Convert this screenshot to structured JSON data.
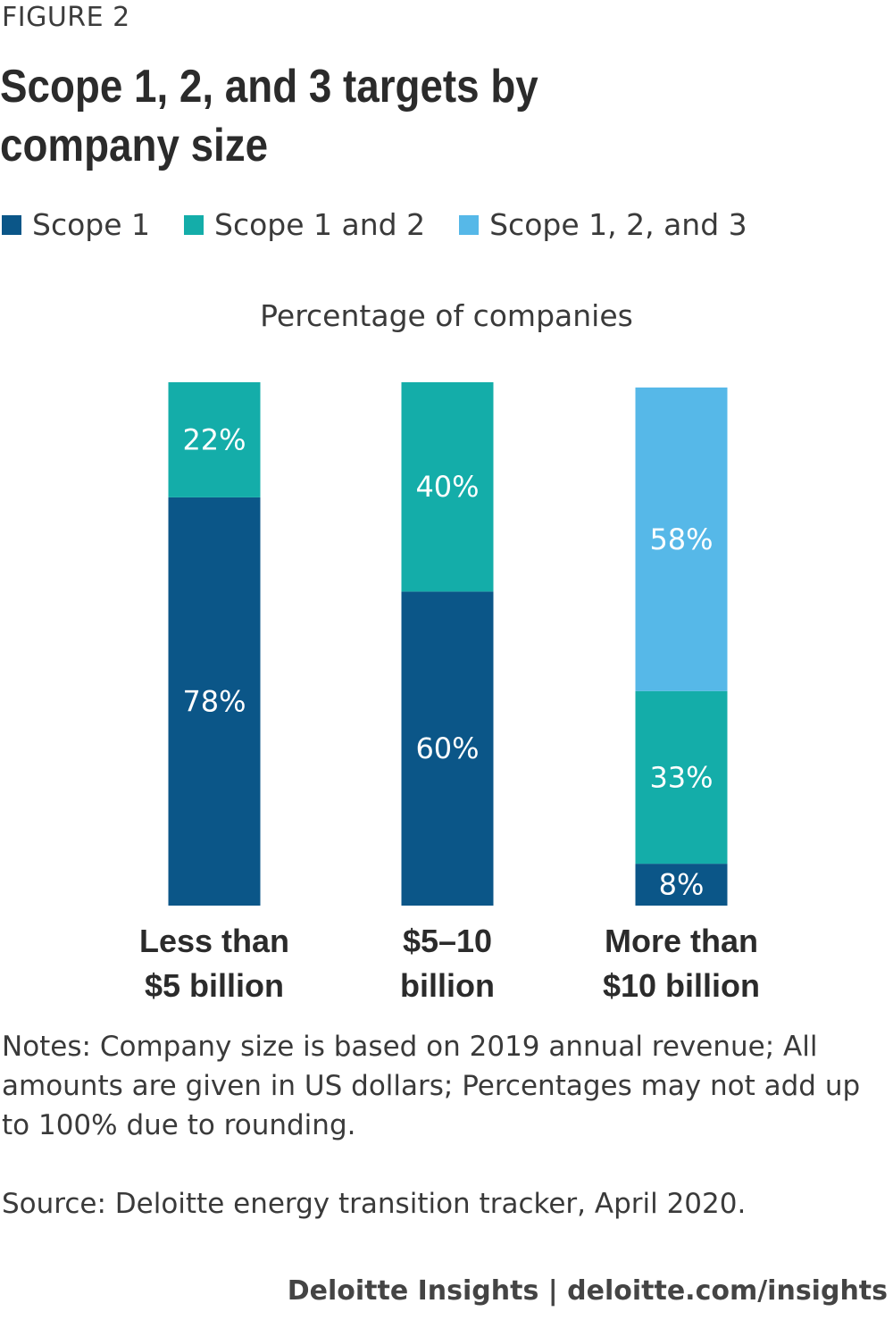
{
  "figure_label": "FIGURE 2",
  "footer": "Deloitte Insights | deloitte.com/insights",
  "notes": "Notes: Company size is based on 2019 annual revenue; All amounts are given in US dollars; Percentages may not add up to 100% due to rounding.",
  "source": "Source: Deloitte energy transition tracker, April 2020.",
  "chart_data": {
    "type": "bar",
    "stacked": true,
    "title": "Scope 1, 2, and 3 targets by company size",
    "subtitle": "Percentage of companies",
    "ylabel": "Percentage of companies",
    "xlabel": "",
    "ylim": [
      0,
      100
    ],
    "grid": false,
    "legend_position": "top-left",
    "categories": [
      [
        "Less than",
        "$5 billion"
      ],
      [
        "$5–10",
        "billion"
      ],
      [
        "More than",
        "$10 billion"
      ]
    ],
    "series": [
      {
        "name": "Scope 1",
        "color": "#0b5688",
        "values": [
          78,
          60,
          8
        ],
        "labels": [
          "78%",
          "60%",
          "8%"
        ]
      },
      {
        "name": "Scope 1 and 2",
        "color": "#14ada9",
        "values": [
          22,
          40,
          33
        ],
        "labels": [
          "22%",
          "40%",
          "33%"
        ]
      },
      {
        "name": "Scope 1, 2, and 3",
        "color": "#56b8e8",
        "values": [
          0,
          0,
          58
        ],
        "labels": [
          "",
          "",
          "58%"
        ]
      }
    ]
  }
}
